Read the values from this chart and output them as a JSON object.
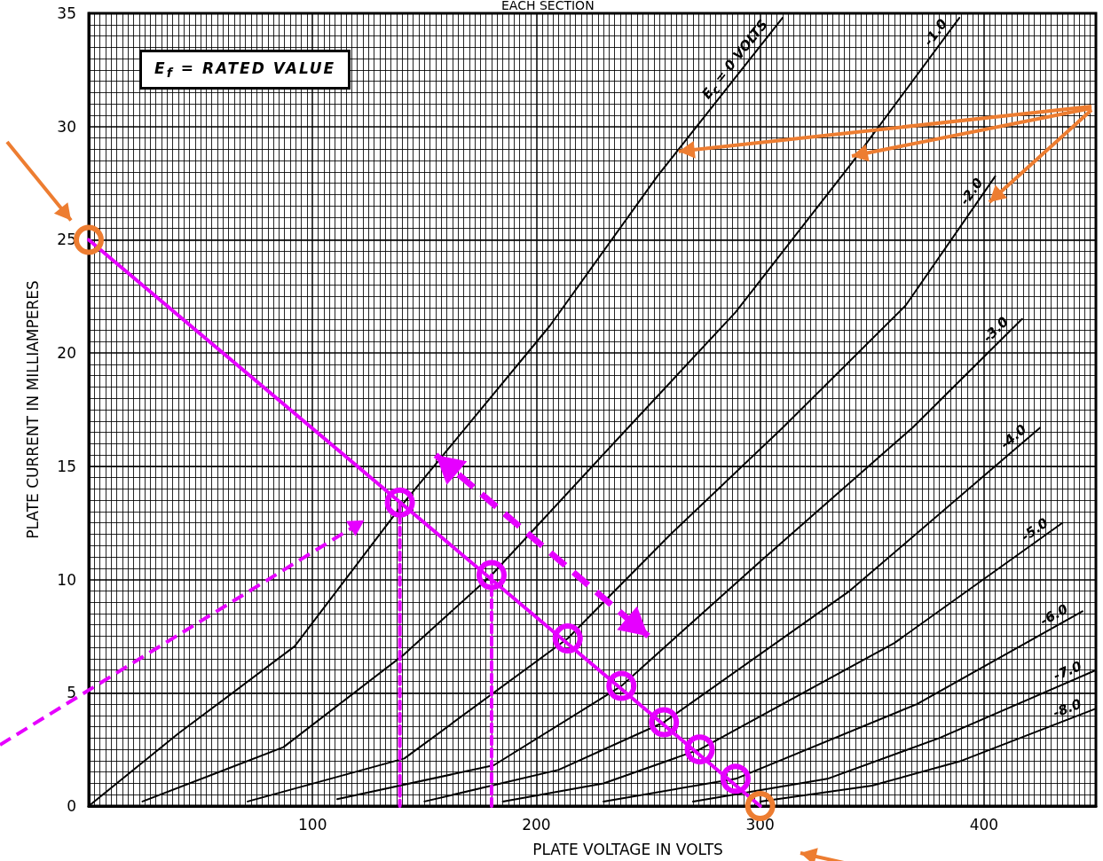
{
  "chart_data": {
    "type": "line",
    "title": "EACH SECTION",
    "xlabel": "PLATE VOLTAGE IN VOLTS",
    "ylabel": "PLATE CURRENT IN MILLIAMPERES",
    "annotations": [
      "E$_{f}$ = RATED VALUE"
    ],
    "xlim": [
      0,
      450
    ],
    "xticks": [
      {
        "value": 0,
        "label": null
      },
      100,
      200,
      300,
      400
    ],
    "ylim": [
      0,
      35
    ],
    "yticks": [
      0,
      5,
      10,
      15,
      20,
      25,
      30,
      35
    ],
    "grid": true,
    "legend": false,
    "marker": "none",
    "line_style": "solid",
    "series": [
      {
        "name": "E$_{c}$ = 0 VOLTS",
        "color": "#000000",
        "x": [
          0,
          40,
          92,
          140,
          206,
          254,
          310
        ],
        "values": [
          0,
          3.2,
          7.05,
          13.3,
          21.2,
          27.8,
          34.8
        ]
      },
      {
        "name": "-1.0",
        "color": "#000000",
        "x": [
          24,
          87,
          141,
          180,
          240,
          289,
          341,
          389
        ],
        "values": [
          0.2,
          2.6,
          6.7,
          10.2,
          16.6,
          21.8,
          28.4,
          34.8
        ]
      },
      {
        "name": "-2.0",
        "color": "#000000",
        "x": [
          71,
          141,
          214,
          260,
          310,
          365,
          405
        ],
        "values": [
          0.2,
          2.1,
          7.4,
          12,
          16.7,
          22.1,
          27.8
        ]
      },
      {
        "name": "-3.0",
        "color": "#000000",
        "x": [
          111,
          181,
          238,
          300,
          368,
          417
        ],
        "values": [
          0.3,
          1.8,
          5.3,
          10.8,
          16.7,
          21.5
        ]
      },
      {
        "name": "-4.0",
        "color": "#000000",
        "x": [
          150,
          210,
          257,
          340,
          425
        ],
        "values": [
          0.2,
          1.6,
          3.7,
          9.5,
          16.7
        ]
      },
      {
        "name": "-5.0",
        "color": "#000000",
        "x": [
          185,
          230,
          273,
          360,
          435
        ],
        "values": [
          0.2,
          1.0,
          2.5,
          7.2,
          12.5
        ]
      },
      {
        "name": "-6.0",
        "color": "#000000",
        "x": [
          230,
          289,
          370,
          444
        ],
        "values": [
          0.2,
          1.2,
          4.5,
          8.6
        ]
      },
      {
        "name": "-7.0",
        "color": "#000000",
        "x": [
          270,
          330,
          380,
          450
        ],
        "values": [
          0.2,
          1.2,
          3.0,
          6.0
        ]
      },
      {
        "name": "-8.0",
        "color": "#000000",
        "x": [
          300,
          350,
          390,
          450
        ],
        "values": [
          0.2,
          0.9,
          2.0,
          4.3
        ]
      },
      {
        "type": "line",
        "color": "#e600ff",
        "x": [
          0,
          300
        ],
        "values": [
          25,
          0
        ]
      },
      {
        "type": "scatter",
        "marker": "circle",
        "color": "#e600ff",
        "x": [
          139,
          180,
          214,
          238,
          257,
          273,
          289
        ],
        "values": [
          13.4,
          10.2,
          7.4,
          5.3,
          3.7,
          2.5,
          1.2
        ]
      },
      {
        "type": "scatter",
        "marker": "circle",
        "color": "#ed7d31",
        "x": [
          0,
          300
        ],
        "values": [
          25,
          0
        ]
      },
      {
        "type": "line",
        "line_style": "dashed",
        "color": "#e600ff",
        "x": [
          139,
          139
        ],
        "values": [
          13.4,
          0
        ]
      },
      {
        "type": "line",
        "line_style": "dashed",
        "color": "#e600ff",
        "x": [
          180,
          180
        ],
        "values": [
          10.2,
          0
        ]
      }
    ]
  }
}
